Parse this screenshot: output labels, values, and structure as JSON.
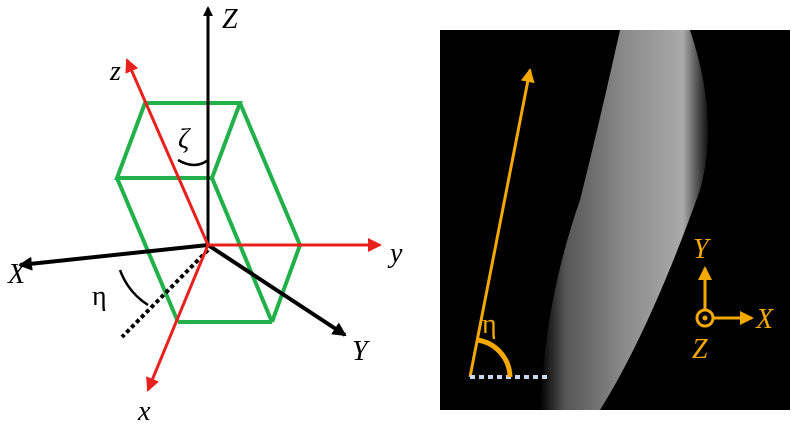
{
  "left_diagram": {
    "labels": {
      "Z": "Z",
      "z": "z",
      "zeta": "ζ",
      "X": "X",
      "eta": "η",
      "y": "y",
      "Y": "Y",
      "x": "x"
    }
  },
  "right_image": {
    "labels": {
      "eta": "η",
      "Y": "Y",
      "X": "X",
      "Z": "Z"
    }
  }
}
